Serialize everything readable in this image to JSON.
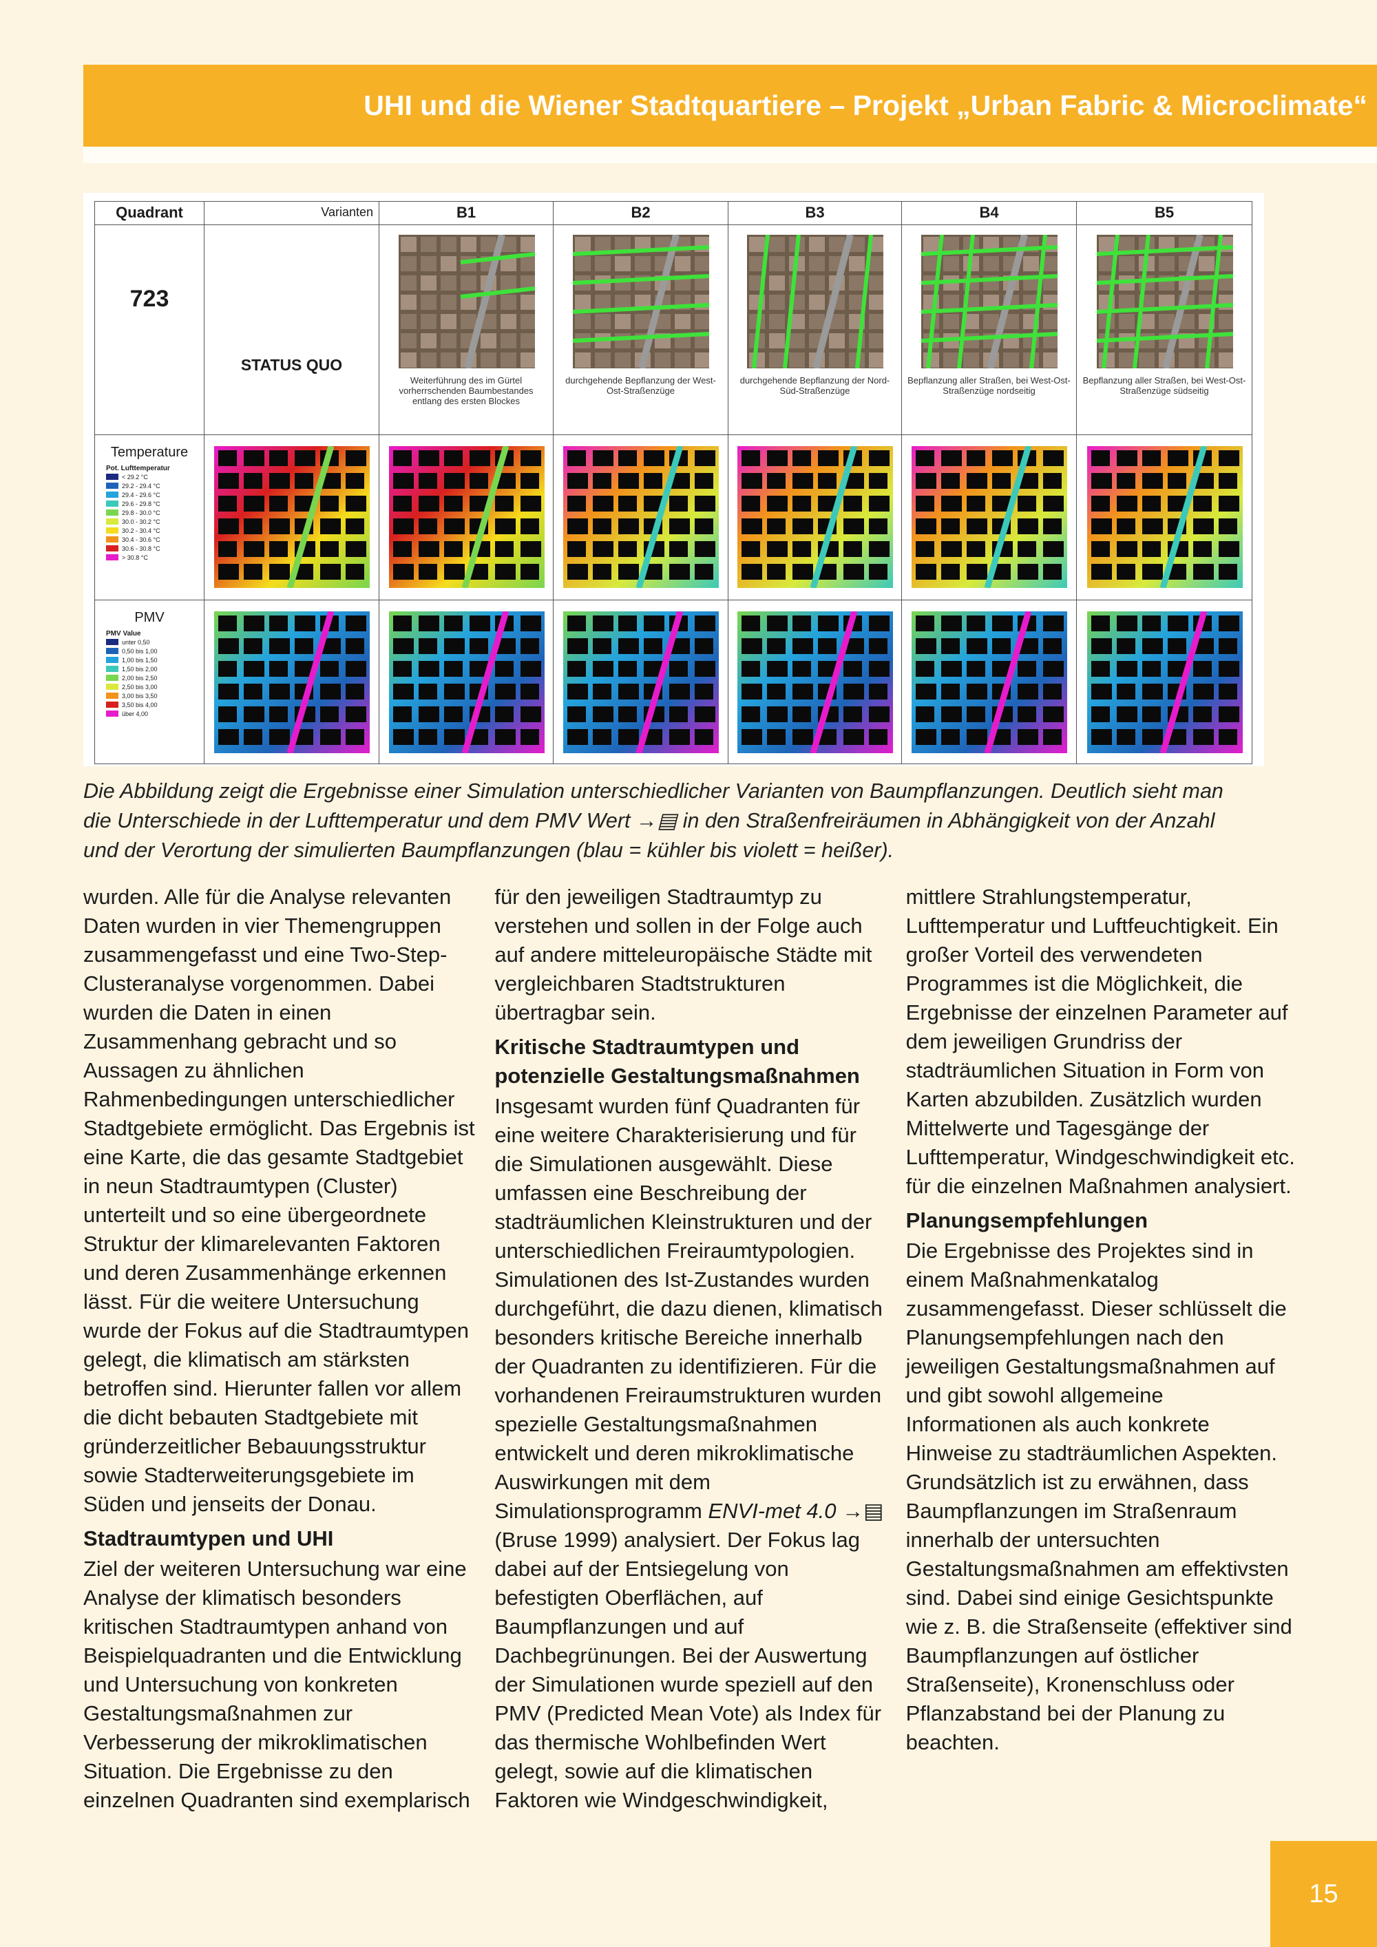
{
  "header": {
    "title": "UHI und die Wiener Stadtquartiere – Projekt „Urban Fabric & Microclimate“"
  },
  "figure": {
    "header_row": [
      "Quadrant",
      "Varianten",
      "B1",
      "B2",
      "B3",
      "B4",
      "B5"
    ],
    "quadrant": "723",
    "status": "STATUS QUO",
    "variant_notes": [
      "Weiterführung des im Gürtel vorherrschenden Baumbestandes entlang des ersten Blockes",
      "durchgehende Bepflanzung der West-Ost-Straßenzüge",
      "durchgehende Bepflanzung der Nord-Süd-Straßenzüge",
      "Bepflanzung aller Straßen, bei West-Ost-Straßenzüge nordseitig",
      "Bepflanzung aller Straßen, bei West-Ost-Straßenzüge südseitig"
    ],
    "temperature": {
      "label": "Temperature",
      "legend_title": "Pot. Lufttemperatur",
      "legend": [
        {
          "label": "< 29.2 °C",
          "color": "#1b2a80"
        },
        {
          "label": "29.2 - 29.4 °C",
          "color": "#1f63b8"
        },
        {
          "label": "29.4 - 29.6 °C",
          "color": "#25a3dc"
        },
        {
          "label": "29.6 - 29.8 °C",
          "color": "#3cc9b9"
        },
        {
          "label": "29.8 - 30.0 °C",
          "color": "#7ad64f"
        },
        {
          "label": "30.0 - 30.2 °C",
          "color": "#d8ea3c"
        },
        {
          "label": "30.2 - 30.4 °C",
          "color": "#f5dc1c"
        },
        {
          "label": "30.4 - 30.6 °C",
          "color": "#f2931b"
        },
        {
          "label": "30.6 - 30.8 °C",
          "color": "#d8201f"
        },
        {
          "label": "> 30.8 °C",
          "color": "#e61ccc"
        }
      ]
    },
    "pmv": {
      "label": "PMV",
      "legend_title": "PMV Value",
      "legend": [
        {
          "label": "unter 0,50",
          "color": "#1b2a80"
        },
        {
          "label": "0,50 bis 1,00",
          "color": "#1f63b8"
        },
        {
          "label": "1,00 bis 1,50",
          "color": "#25a3dc"
        },
        {
          "label": "1,50 bis 2,00",
          "color": "#3cc9b9"
        },
        {
          "label": "2,00 bis 2,50",
          "color": "#7ad64f"
        },
        {
          "label": "2,50 bis 3,00",
          "color": "#d8ea3c"
        },
        {
          "label": "3,00 bis 3,50",
          "color": "#f2931b"
        },
        {
          "label": "3,50 bis 4,00",
          "color": "#d8201f"
        },
        {
          "label": "über 4,00",
          "color": "#e61ccc"
        }
      ]
    }
  },
  "caption": "Die Abbildung zeigt die Ergebnisse einer Simulation unterschiedlicher Varianten von Baumpflanzungen. Deutlich sieht man die Unterschiede in der Lufttemperatur und dem PMV Wert →▤ in den Straßenfreiräumen in Abhängigkeit von der Anzahl und der Verortung der simulierten Baumpflanzungen (blau = kühler bis violett = heißer).",
  "body": [
    {
      "type": "p",
      "text": "wurden. Alle für die Analyse relevanten Daten wurden in vier Themengruppen zusammengefasst und eine Two-Step-Clusteranalyse vorgenommen. Dabei wurden die Daten in einen Zusammenhang gebracht und so Aussagen zu ähnlichen Rahmenbedingungen unterschiedlicher Stadtgebiete ermöglicht. Das Ergebnis ist eine Karte, die das gesamte Stadtgebiet in neun Stadtraumtypen (Cluster) unterteilt und so eine übergeordnete Struktur der klimarelevanten Faktoren und deren Zusammenhänge erkennen lässt. Für die weitere Untersuchung wurde der Fokus auf die Stadtraumtypen gelegt, die klimatisch am stärksten betroffen sind. Hierunter fallen vor allem die dicht bebauten Stadtgebiete mit gründerzeitlicher Bebauungsstruktur sowie Stadterweiterungsgebiete im Süden und jenseits der Donau."
    },
    {
      "type": "h",
      "text": "Stadtraumtypen und UHI"
    },
    {
      "type": "p",
      "text": "Ziel der weiteren Untersuchung war eine Analyse der klimatisch besonders kritischen Stadtraumtypen anhand von Beispielquadranten und die Entwicklung und Untersuchung von konkreten Gestaltungsmaßnahmen zur Verbesserung der mikroklimatischen Situation. Die Ergebnisse zu den einzelnen Quadranten sind exemplarisch für den jeweiligen Stadtraumtyp zu verstehen und sollen in der Folge auch auf andere mitteleuropäische Städte mit vergleichbaren Stadtstrukturen übertragbar sein."
    },
    {
      "type": "h",
      "text": "Kritische Stadtraumtypen und potenzielle Gestaltungsmaßnahmen"
    },
    {
      "type": "p",
      "runs": [
        {
          "text": "Insgesamt wurden fünf Quadranten für eine weitere Charakterisierung und für die Simulationen ausgewählt. Diese umfassen eine Beschreibung der stadträumlichen Kleinstrukturen und der unterschiedlichen Freiraumtypologien. Simulationen des Ist-Zustandes wurden durchgeführt, die dazu dienen, klimatisch besonders kritische Bereiche innerhalb der Quadranten zu identifizieren. Für die vorhandenen Freiraumstrukturen wurden spezielle Gestaltungsmaßnahmen entwickelt und deren mikroklimatische Auswirkungen mit dem Simulationsprogramm"
        },
        {
          "text": "ENVI-met 4.0",
          "italic": true
        },
        {
          "text": "→▤ (Bruse 1999) analysiert. Der Fokus lag dabei auf der Entsiegelung von befestigten Oberflächen, auf Baumpflanzungen und auf Dachbegrünungen. Bei der Auswertung der Simulationen wurde speziell auf den PMV (Predicted Mean Vote) als Index für das thermische Wohlbefinden Wert gelegt, sowie auf die klimatischen Faktoren wie Windgeschwindigkeit, mittlere Strahlungstemperatur, Lufttemperatur und Luftfeuchtigkeit. Ein großer Vorteil des verwendeten Programmes ist die Möglichkeit, die Ergebnisse der einzelnen Parameter auf dem jeweiligen Grundriss der stadträumlichen Situation in Form von Karten abzubilden. Zusätzlich wurden Mittelwerte und Tagesgänge der Lufttemperatur, Windgeschwindigkeit etc. für die einzelnen Maßnahmen analysiert."
        }
      ]
    },
    {
      "type": "h",
      "text": "Planungsempfehlungen"
    },
    {
      "type": "p",
      "text": "Die Ergebnisse des Projektes sind in einem Maßnahmenkatalog zusammengefasst. Dieser schlüsselt die Planungsempfehlungen nach den jeweiligen Gestaltungsmaßnahmen auf und gibt sowohl allgemeine Informationen als auch konkrete Hinweise zu stadträumlichen Aspekten. Grundsätzlich ist zu erwähnen, dass Baumpflanzungen im Straßenraum innerhalb der untersuchten Gestaltungsmaßnahmen am effektivsten sind. Dabei sind einige Gesichtspunkte wie z. B. die Straßenseite (effektiver sind Baumpflanzungen auf östlicher Straßenseite), Kronenschluss oder Pflanzabstand bei der Planung zu beachten."
    }
  ],
  "page_number": "15"
}
